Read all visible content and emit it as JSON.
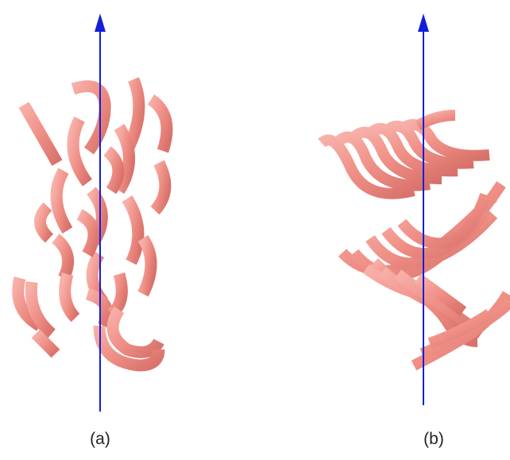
{
  "panels": [
    {
      "id": "a",
      "label": "(a)",
      "arrangement": "random"
    },
    {
      "id": "b",
      "label": "(b)",
      "arrangement": "twisted-helical"
    }
  ],
  "colors": {
    "rod_fill": "#ef8f86",
    "rod_shade": "#d8716a",
    "axis": "#1320d8",
    "caption": "#222222",
    "background": "#ffffff"
  }
}
